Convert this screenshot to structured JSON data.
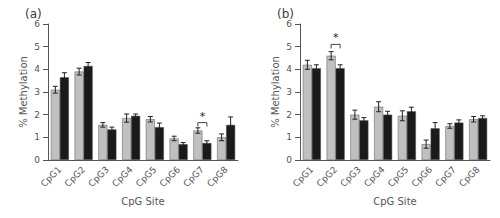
{
  "chart_data": [
    {
      "type": "bar",
      "title": "(a)",
      "categories": [
        "CpG1",
        "CpG2",
        "CpG3",
        "CpG4",
        "CpG5",
        "CpG6",
        "CpG7",
        "CpG8"
      ],
      "series": [
        {
          "color": "#c0c0c0",
          "values": [
            3.1,
            3.9,
            1.55,
            1.85,
            1.8,
            0.95,
            1.3,
            1.0
          ],
          "yerr": [
            0.15,
            0.15,
            0.1,
            0.18,
            0.12,
            0.1,
            0.12,
            0.15
          ]
        },
        {
          "color": "#1a1a1a",
          "values": [
            3.65,
            4.15,
            1.35,
            1.95,
            1.45,
            0.7,
            0.75,
            1.55
          ],
          "yerr": [
            0.2,
            0.15,
            0.1,
            0.08,
            0.18,
            0.07,
            0.1,
            0.35
          ]
        }
      ],
      "annotations": [
        {
          "text": "*",
          "category": "CpG7",
          "y": 1.65
        }
      ],
      "xlabel": "CpG Site",
      "ylabel": "% Methylation",
      "ylim": [
        0,
        6
      ],
      "yticks": [
        0,
        1,
        2,
        3,
        4,
        5,
        6
      ],
      "grid": false
    },
    {
      "type": "bar",
      "title": "(b)",
      "categories": [
        "CpG1",
        "CpG2",
        "CpG3",
        "CpG4",
        "CpG5",
        "CpG6",
        "CpG7",
        "CpG8"
      ],
      "series": [
        {
          "color": "#c0c0c0",
          "values": [
            4.2,
            4.6,
            2.0,
            2.35,
            1.95,
            0.7,
            1.5,
            1.8
          ],
          "yerr": [
            0.2,
            0.18,
            0.2,
            0.22,
            0.22,
            0.18,
            0.1,
            0.12
          ]
        },
        {
          "color": "#1a1a1a",
          "values": [
            4.05,
            4.05,
            1.75,
            2.0,
            2.15,
            1.4,
            1.65,
            1.85
          ],
          "yerr": [
            0.15,
            0.15,
            0.12,
            0.15,
            0.18,
            0.25,
            0.12,
            0.1
          ]
        }
      ],
      "annotations": [
        {
          "text": "*",
          "category": "CpG2",
          "y": 5.1
        }
      ],
      "xlabel": "CpG Site",
      "ylabel": "% Methylation",
      "ylim": [
        0,
        6
      ],
      "yticks": [
        0,
        1,
        2,
        3,
        4,
        5,
        6
      ],
      "grid": false
    }
  ]
}
